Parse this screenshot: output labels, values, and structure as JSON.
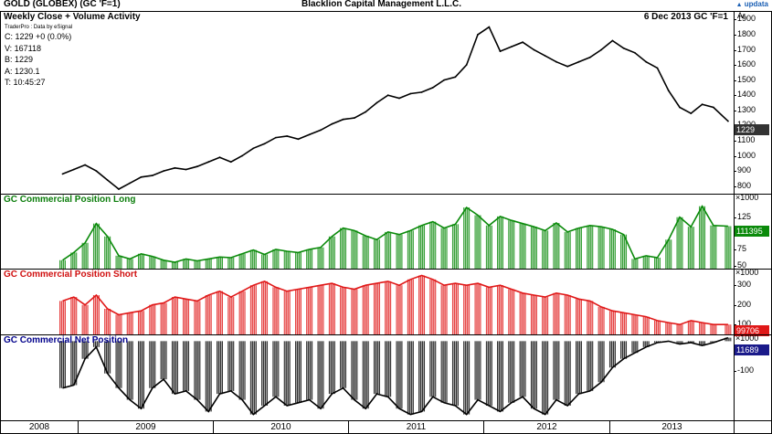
{
  "header": {
    "title": "GOLD (GLOBEX) (GC 'F=1)",
    "company": "Blacklion Capital Management L.L.C.",
    "logo": "updata"
  },
  "price_panel": {
    "title": "Weekly Close + Volume Activity",
    "date_label": "6 Dec 2013  GC 'F=1",
    "axis_unit": "Ar",
    "source": "TraderPro : Data by eSignal",
    "readout": [
      "C: 1229 +0 (0.0%)",
      "V: 167118",
      "B: 1229",
      "A: 1230.1",
      "T: 10:45:27"
    ],
    "last_value": "1229",
    "ticks": [
      "1900",
      "1800",
      "1700",
      "1600",
      "1500",
      "1400",
      "1300",
      "1200",
      "1100",
      "1000",
      "900",
      "800"
    ]
  },
  "long_panel": {
    "title": "GC Commercial Position Long",
    "multiplier": "×1000",
    "ticks": [
      "125",
      "100",
      "75",
      "50"
    ],
    "last_value": "111395"
  },
  "short_panel": {
    "title": "GC Commercial Position Short",
    "multiplier": "×1000",
    "ticks": [
      "300",
      "200",
      "100"
    ],
    "last_value": "99706"
  },
  "net_panel": {
    "title": "GC Commercial Net Position",
    "multiplier": "×1000",
    "ticks": [
      "-100"
    ],
    "last_value": "11689"
  },
  "years": [
    "2008",
    "2009",
    "2010",
    "2011",
    "2012",
    "2013"
  ],
  "colors": {
    "long": "#0a8a0a",
    "short": "#e01818",
    "net": "#000000",
    "price_line": "#000000"
  },
  "chart_data": [
    {
      "type": "line",
      "title": "Weekly Close + Volume Activity",
      "ylim": [
        750,
        1950
      ],
      "x": [
        2008.0,
        2008.1,
        2008.2,
        2008.3,
        2008.4,
        2008.5,
        2008.6,
        2008.7,
        2008.8,
        2008.9,
        2009.0,
        2009.1,
        2009.2,
        2009.3,
        2009.4,
        2009.5,
        2009.6,
        2009.7,
        2009.8,
        2009.9,
        2010.0,
        2010.1,
        2010.2,
        2010.3,
        2010.4,
        2010.5,
        2010.6,
        2010.7,
        2010.8,
        2010.9,
        2011.0,
        2011.1,
        2011.2,
        2011.3,
        2011.4,
        2011.5,
        2011.6,
        2011.7,
        2011.8,
        2011.9,
        2012.0,
        2012.1,
        2012.2,
        2012.3,
        2012.4,
        2012.5,
        2012.6,
        2012.7,
        2012.8,
        2012.9,
        2013.0,
        2013.1,
        2013.2,
        2013.3,
        2013.4,
        2013.5,
        2013.6,
        2013.7,
        2013.8,
        2013.93
      ],
      "values": [
        880,
        910,
        940,
        900,
        840,
        780,
        820,
        860,
        870,
        900,
        920,
        910,
        930,
        960,
        990,
        960,
        1000,
        1050,
        1080,
        1120,
        1130,
        1110,
        1140,
        1170,
        1210,
        1240,
        1250,
        1290,
        1350,
        1400,
        1380,
        1410,
        1420,
        1450,
        1500,
        1520,
        1600,
        1800,
        1850,
        1690,
        1720,
        1750,
        1700,
        1660,
        1620,
        1590,
        1620,
        1650,
        1700,
        1760,
        1710,
        1680,
        1620,
        1580,
        1430,
        1320,
        1280,
        1340,
        1320,
        1229
      ]
    },
    {
      "type": "bar",
      "title": "GC Commercial Position Long",
      "ylim": [
        45,
        160
      ],
      "x": [
        2008.0,
        2008.1,
        2008.2,
        2008.3,
        2008.4,
        2008.5,
        2008.6,
        2008.7,
        2008.8,
        2008.9,
        2009.0,
        2009.1,
        2009.2,
        2009.3,
        2009.4,
        2009.5,
        2009.6,
        2009.7,
        2009.8,
        2009.9,
        2010.0,
        2010.1,
        2010.2,
        2010.3,
        2010.4,
        2010.5,
        2010.6,
        2010.7,
        2010.8,
        2010.9,
        2011.0,
        2011.1,
        2011.2,
        2011.3,
        2011.4,
        2011.5,
        2011.6,
        2011.7,
        2011.8,
        2011.9,
        2012.0,
        2012.1,
        2012.2,
        2012.3,
        2012.4,
        2012.5,
        2012.6,
        2012.7,
        2012.8,
        2012.9,
        2013.0,
        2013.1,
        2013.2,
        2013.3,
        2013.4,
        2013.5,
        2013.6,
        2013.7,
        2013.8,
        2013.93
      ],
      "values": [
        58,
        70,
        85,
        115,
        95,
        65,
        60,
        68,
        64,
        58,
        55,
        60,
        57,
        60,
        63,
        62,
        68,
        74,
        67,
        75,
        72,
        70,
        75,
        78,
        95,
        108,
        104,
        96,
        90,
        102,
        98,
        104,
        112,
        118,
        108,
        114,
        140,
        128,
        112,
        126,
        120,
        115,
        110,
        104,
        116,
        102,
        108,
        112,
        110,
        106,
        98,
        60,
        65,
        62,
        90,
        125,
        110,
        142,
        112,
        111
      ]
    },
    {
      "type": "bar",
      "title": "GC Commercial Position Short",
      "ylim": [
        50,
        380
      ],
      "x": [
        2008.0,
        2008.1,
        2008.2,
        2008.3,
        2008.4,
        2008.5,
        2008.6,
        2008.7,
        2008.8,
        2008.9,
        2009.0,
        2009.1,
        2009.2,
        2009.3,
        2009.4,
        2009.5,
        2009.6,
        2009.7,
        2009.8,
        2009.9,
        2010.0,
        2010.1,
        2010.2,
        2010.3,
        2010.4,
        2010.5,
        2010.6,
        2010.7,
        2010.8,
        2010.9,
        2011.0,
        2011.1,
        2011.2,
        2011.3,
        2011.4,
        2011.5,
        2011.6,
        2011.7,
        2011.8,
        2011.9,
        2012.0,
        2012.1,
        2012.2,
        2012.3,
        2012.4,
        2012.5,
        2012.6,
        2012.7,
        2012.8,
        2012.9,
        2013.0,
        2013.1,
        2013.2,
        2013.3,
        2013.4,
        2013.5,
        2013.6,
        2013.7,
        2013.8,
        2013.93
      ],
      "values": [
        220,
        240,
        200,
        250,
        180,
        150,
        160,
        170,
        200,
        210,
        240,
        230,
        220,
        250,
        270,
        240,
        270,
        300,
        320,
        290,
        270,
        280,
        290,
        300,
        310,
        290,
        280,
        300,
        310,
        320,
        300,
        330,
        350,
        330,
        300,
        310,
        300,
        310,
        290,
        300,
        280,
        260,
        250,
        240,
        260,
        250,
        230,
        220,
        190,
        170,
        160,
        150,
        140,
        120,
        110,
        100,
        120,
        110,
        100,
        100
      ]
    },
    {
      "type": "bar",
      "title": "GC Commercial Net Position",
      "ylim": [
        -270,
        20
      ],
      "x": [
        2008.0,
        2008.1,
        2008.2,
        2008.3,
        2008.4,
        2008.5,
        2008.6,
        2008.7,
        2008.8,
        2008.9,
        2009.0,
        2009.1,
        2009.2,
        2009.3,
        2009.4,
        2009.5,
        2009.6,
        2009.7,
        2009.8,
        2009.9,
        2010.0,
        2010.1,
        2010.2,
        2010.3,
        2010.4,
        2010.5,
        2010.6,
        2010.7,
        2010.8,
        2010.9,
        2011.0,
        2011.1,
        2011.2,
        2011.3,
        2011.4,
        2011.5,
        2011.6,
        2011.7,
        2011.8,
        2011.9,
        2012.0,
        2012.1,
        2012.2,
        2012.3,
        2012.4,
        2012.5,
        2012.6,
        2012.7,
        2012.8,
        2012.9,
        2013.0,
        2013.1,
        2013.2,
        2013.3,
        2013.4,
        2013.5,
        2013.6,
        2013.7,
        2013.8,
        2013.93
      ],
      "values": [
        -160,
        -150,
        -60,
        -20,
        -110,
        -160,
        -200,
        -230,
        -160,
        -130,
        -180,
        -170,
        -200,
        -240,
        -180,
        -170,
        -200,
        -250,
        -220,
        -190,
        -220,
        -210,
        -200,
        -230,
        -180,
        -160,
        -200,
        -230,
        -180,
        -190,
        -230,
        -250,
        -240,
        -190,
        -210,
        -220,
        -250,
        -200,
        -220,
        -240,
        -210,
        -190,
        -230,
        -250,
        -200,
        -220,
        -180,
        -170,
        -140,
        -90,
        -60,
        -40,
        -20,
        -5,
        0,
        -10,
        -5,
        -15,
        -5,
        12
      ]
    }
  ]
}
